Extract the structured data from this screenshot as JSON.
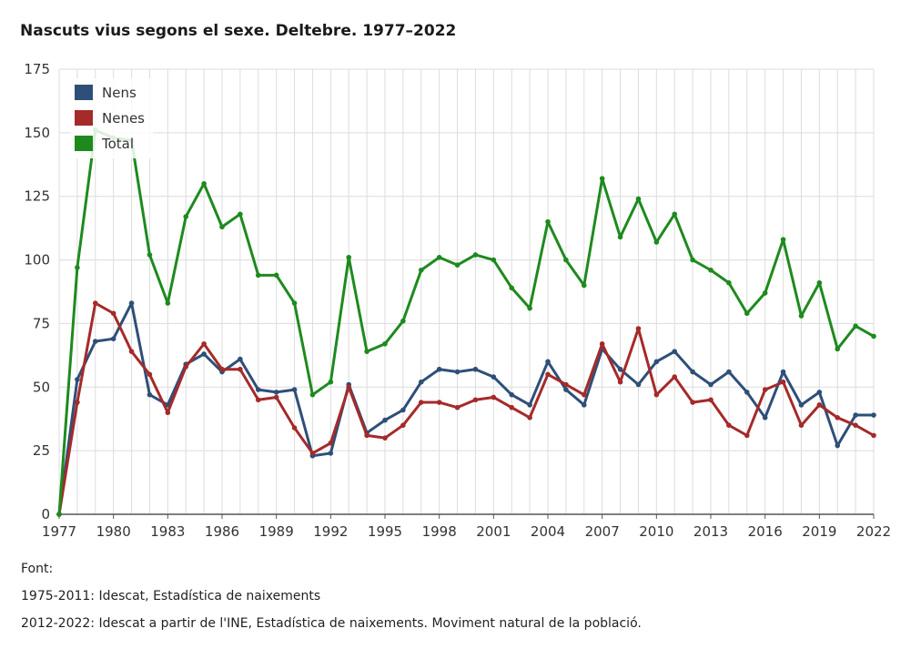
{
  "chart_data": {
    "type": "line",
    "title": "Nascuts vius segons el sexe. Deltebre. 1977–2022",
    "xlabel": "",
    "ylabel": "",
    "ylim": [
      0,
      175
    ],
    "xlim": [
      1977,
      2022
    ],
    "yticks": [
      0,
      25,
      50,
      75,
      100,
      125,
      150,
      175
    ],
    "xticks": [
      1977,
      1980,
      1983,
      1986,
      1989,
      1992,
      1995,
      1998,
      2001,
      2004,
      2007,
      2010,
      2013,
      2016,
      2019,
      2022
    ],
    "grid": true,
    "legend_position": "top-left",
    "x": [
      1977,
      1978,
      1979,
      1980,
      1981,
      1982,
      1983,
      1984,
      1985,
      1986,
      1987,
      1988,
      1989,
      1990,
      1991,
      1992,
      1993,
      1994,
      1995,
      1996,
      1997,
      1998,
      1999,
      2000,
      2001,
      2002,
      2003,
      2004,
      2005,
      2006,
      2007,
      2008,
      2009,
      2010,
      2011,
      2012,
      2013,
      2014,
      2015,
      2016,
      2017,
      2018,
      2019,
      2020,
      2021,
      2022
    ],
    "series": [
      {
        "name": "Nens",
        "color": "#2e4f78",
        "values": [
          0,
          53,
          68,
          69,
          83,
          47,
          43,
          59,
          63,
          56,
          61,
          49,
          48,
          49,
          23,
          24,
          51,
          32,
          37,
          41,
          52,
          57,
          56,
          57,
          54,
          47,
          43,
          60,
          49,
          43,
          65,
          57,
          51,
          60,
          64,
          56,
          51,
          56,
          48,
          38,
          56,
          43,
          48,
          27,
          39,
          39
        ]
      },
      {
        "name": "Nenes",
        "color": "#a52a2a",
        "values": [
          0,
          44,
          83,
          79,
          64,
          55,
          40,
          58,
          67,
          57,
          57,
          45,
          46,
          34,
          24,
          28,
          50,
          31,
          30,
          35,
          44,
          44,
          42,
          45,
          46,
          42,
          38,
          55,
          51,
          47,
          67,
          52,
          73,
          47,
          54,
          44,
          45,
          35,
          31,
          49,
          52,
          35,
          43,
          38,
          35,
          31
        ]
      },
      {
        "name": "Total",
        "color": "#1e8a1e",
        "values": [
          0,
          97,
          151,
          148,
          147,
          102,
          83,
          117,
          130,
          113,
          118,
          94,
          94,
          83,
          47,
          52,
          101,
          64,
          67,
          76,
          96,
          101,
          98,
          102,
          100,
          89,
          81,
          115,
          100,
          90,
          132,
          109,
          124,
          107,
          118,
          100,
          96,
          91,
          79,
          87,
          108,
          78,
          91,
          65,
          74,
          70
        ]
      }
    ]
  },
  "footer": {
    "source_label": "Font:",
    "source_1": "1975-2011: Idescat, Estadística de naixements",
    "source_2": "2012-2022: Idescat a partir de l'INE, Estadística de naixements. Moviment natural de la població."
  }
}
